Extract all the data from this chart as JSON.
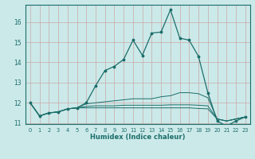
{
  "xlabel": "Humidex (Indice chaleur)",
  "background_color": "#cce9e9",
  "line_color": "#1a6e6a",
  "grid_color": "#c8a8a8",
  "x_data": [
    0,
    1,
    2,
    3,
    4,
    5,
    6,
    7,
    8,
    9,
    10,
    11,
    12,
    13,
    14,
    15,
    16,
    17,
    18,
    19,
    20,
    21,
    22,
    23
  ],
  "main_line": [
    12.0,
    11.35,
    11.5,
    11.55,
    11.7,
    11.75,
    12.0,
    12.85,
    13.6,
    13.8,
    14.15,
    15.1,
    14.35,
    15.45,
    15.5,
    16.6,
    15.2,
    15.1,
    14.3,
    12.5,
    11.1,
    10.85,
    11.1,
    11.3
  ],
  "fill_lines": [
    [
      12.0,
      11.35,
      11.5,
      11.55,
      11.7,
      11.75,
      11.95,
      12.0,
      12.05,
      12.1,
      12.15,
      12.2,
      12.2,
      12.2,
      12.3,
      12.35,
      12.5,
      12.5,
      12.45,
      12.25,
      11.2,
      11.1,
      11.2,
      11.3
    ],
    [
      12.0,
      11.35,
      11.5,
      11.55,
      11.7,
      11.75,
      11.82,
      11.85,
      11.85,
      11.85,
      11.88,
      11.88,
      11.88,
      11.88,
      11.88,
      11.9,
      11.9,
      11.9,
      11.88,
      11.85,
      11.2,
      11.1,
      11.2,
      11.3
    ],
    [
      12.0,
      11.35,
      11.5,
      11.55,
      11.7,
      11.75,
      11.75,
      11.75,
      11.75,
      11.75,
      11.75,
      11.75,
      11.75,
      11.75,
      11.75,
      11.75,
      11.75,
      11.75,
      11.72,
      11.7,
      11.2,
      11.1,
      11.2,
      11.3
    ]
  ],
  "xlim": [
    -0.5,
    23.5
  ],
  "ylim": [
    10.95,
    16.85
  ],
  "yticks": [
    11,
    12,
    13,
    14,
    15,
    16
  ],
  "xticks": [
    0,
    1,
    2,
    3,
    4,
    5,
    6,
    7,
    8,
    9,
    10,
    11,
    12,
    13,
    14,
    15,
    16,
    17,
    18,
    19,
    20,
    21,
    22,
    23
  ]
}
